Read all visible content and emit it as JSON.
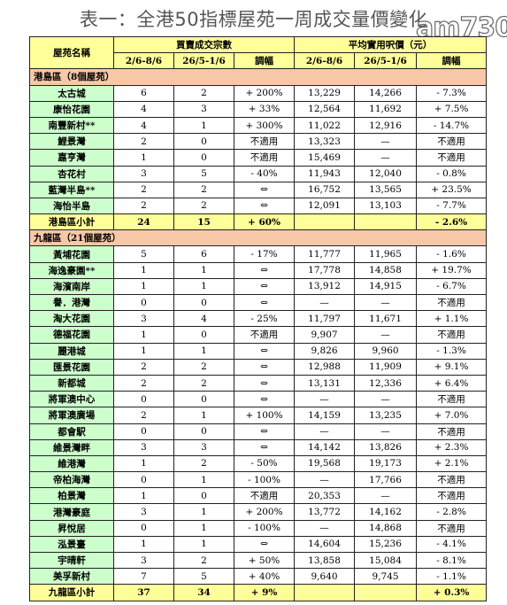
{
  "title": "表一：全港50指標屋苑一周成交量價變化",
  "watermark": "am730",
  "header": {
    "estate": "屋苑名稱",
    "group_volume": "買賣成交宗數",
    "group_price": "平均實用呎價（元）",
    "cols": [
      "2/6-8/6",
      "26/5-1/6",
      "調幅",
      "2/6-8/6",
      "26/5-1/6",
      "調幅"
    ]
  },
  "sections": [
    {
      "region": "港島區（8個屋苑）",
      "rows": [
        [
          "太古城",
          "6",
          "2",
          "+ 200%",
          "13,229",
          "14,266",
          "- 7.3%"
        ],
        [
          "康怡花園",
          "4",
          "3",
          "+ 33%",
          "12,564",
          "11,692",
          "+ 7.5%"
        ],
        [
          "南豐新村**",
          "4",
          "1",
          "+ 300%",
          "11,022",
          "12,916",
          "- 14.7%"
        ],
        [
          "鯉景灣",
          "2",
          "0",
          "不適用",
          "13,323",
          "—",
          "不適用"
        ],
        [
          "嘉亨灣",
          "1",
          "0",
          "不適用",
          "15,469",
          "—",
          "不適用"
        ],
        [
          "杏花村",
          "3",
          "5",
          "- 40%",
          "11,943",
          "12,040",
          "- 0.8%"
        ],
        [
          "藍灣半島**",
          "2",
          "2",
          "⇔",
          "16,752",
          "13,565",
          "+ 23.5%"
        ],
        [
          "海怡半島",
          "2",
          "2",
          "⇔",
          "12,091",
          "13,103",
          "- 7.7%"
        ]
      ],
      "total": [
        "港島區小計",
        "24",
        "15",
        "+ 60%",
        "",
        "",
        "- 2.6%"
      ]
    },
    {
      "region": "九龍區（21個屋苑）",
      "rows": [
        [
          "黃埔花園",
          "5",
          "6",
          "- 17%",
          "11,777",
          "11,965",
          "- 1.6%"
        ],
        [
          "海逸豪園**",
          "1",
          "1",
          "⇔",
          "17,778",
          "14,858",
          "+ 19.7%"
        ],
        [
          "海濱南岸",
          "1",
          "1",
          "⇔",
          "13,912",
          "14,915",
          "- 6.7%"
        ],
        [
          "譽．港灣",
          "0",
          "0",
          "⇔",
          "—",
          "—",
          "不適用"
        ],
        [
          "淘大花園",
          "3",
          "4",
          "- 25%",
          "11,797",
          "11,671",
          "+ 1.1%"
        ],
        [
          "德福花園",
          "1",
          "0",
          "不適用",
          "9,907",
          "—",
          "不適用"
        ],
        [
          "麗港城",
          "1",
          "1",
          "⇔",
          "9,826",
          "9,960",
          "- 1.3%"
        ],
        [
          "匯景花園",
          "2",
          "2",
          "⇔",
          "12,988",
          "11,909",
          "+ 9.1%"
        ],
        [
          "新都城",
          "2",
          "2",
          "⇔",
          "13,131",
          "12,336",
          "+ 6.4%"
        ],
        [
          "將軍澳中心",
          "0",
          "0",
          "⇔",
          "—",
          "—",
          "不適用"
        ],
        [
          "將軍澳廣場",
          "2",
          "1",
          "+ 100%",
          "14,159",
          "13,235",
          "+ 7.0%"
        ],
        [
          "都會駅",
          "0",
          "0",
          "⇔",
          "—",
          "—",
          "不適用"
        ],
        [
          "維景灣畔",
          "3",
          "3",
          "⇔",
          "14,142",
          "13,826",
          "+ 2.3%"
        ],
        [
          "維港灣",
          "1",
          "2",
          "- 50%",
          "19,568",
          "19,173",
          "+ 2.1%"
        ],
        [
          "帝柏海灣",
          "0",
          "1",
          "- 100%",
          "—",
          "17,766",
          "不適用"
        ],
        [
          "柏景灣",
          "1",
          "0",
          "不適用",
          "20,353",
          "—",
          "不適用"
        ],
        [
          "港灣豪庭",
          "3",
          "1",
          "+ 200%",
          "13,772",
          "14,162",
          "- 2.8%"
        ],
        [
          "昇悅居",
          "0",
          "1",
          "- 100%",
          "—",
          "14,868",
          "不適用"
        ],
        [
          "泓景臺",
          "1",
          "1",
          "⇔",
          "14,604",
          "15,236",
          "- 4.1%"
        ],
        [
          "宇晴軒",
          "3",
          "2",
          "+ 50%",
          "13,858",
          "15,084",
          "- 8.1%"
        ],
        [
          "美孚新村",
          "7",
          "5",
          "+ 40%",
          "9,640",
          "9,745",
          "- 1.1%"
        ]
      ],
      "total": [
        "九龍區小計",
        "37",
        "34",
        "+ 9%",
        "",
        "",
        "+ 0.3%"
      ]
    }
  ]
}
